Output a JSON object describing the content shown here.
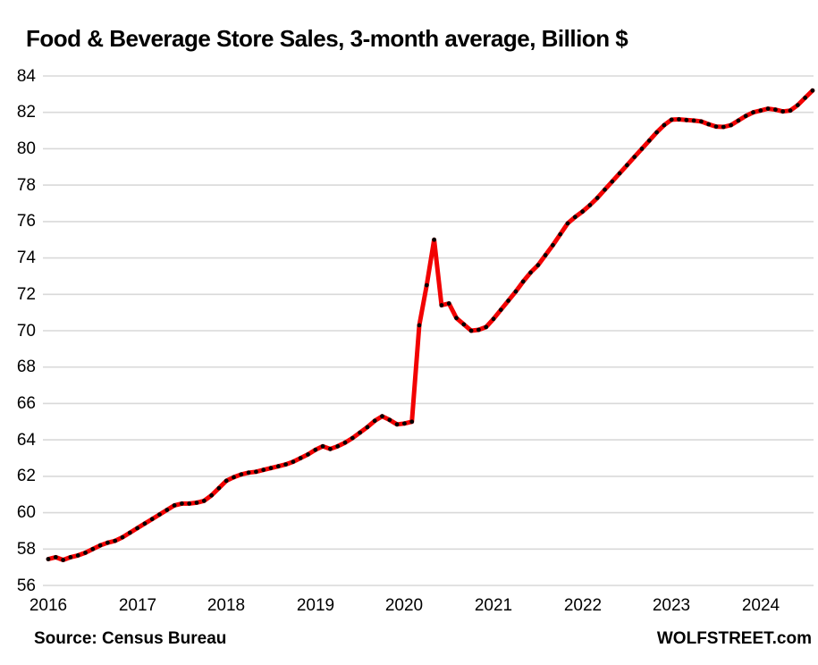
{
  "header": {
    "title": "Food & Beverage Store Sales, 3-month average, Billion $"
  },
  "footer": {
    "source": "Source: Census Bureau",
    "brand": "WOLFSTREET.com"
  },
  "colors": {
    "line": "#F20202",
    "marker": "#000000",
    "grid": "#D9D9D9",
    "text": "#000000",
    "background": "#FFFFFF"
  },
  "chart_data": {
    "type": "line",
    "title": "Food & Beverage Store Sales, 3-month average, Billion $",
    "xlabel": "",
    "ylabel": "",
    "ylim": [
      56,
      84
    ],
    "y_ticks": [
      56,
      58,
      60,
      62,
      64,
      66,
      68,
      70,
      72,
      74,
      76,
      78,
      80,
      82,
      84
    ],
    "x_tick_labels": [
      "2016",
      "2017",
      "2018",
      "2019",
      "2020",
      "2021",
      "2022",
      "2023",
      "2024"
    ],
    "grid": "horizontal-only",
    "legend": "none",
    "frequency": "monthly",
    "x_start": "2016-01",
    "x_end": "2024-08",
    "series": [
      {
        "name": "Food & beverage store sales, 3-month average, billion $",
        "line_color": "#F20202",
        "marker": "black dots on line",
        "values": [
          57.45,
          57.55,
          57.4,
          57.55,
          57.65,
          57.8,
          58.0,
          58.2,
          58.35,
          58.45,
          58.65,
          58.9,
          59.15,
          59.4,
          59.65,
          59.9,
          60.15,
          60.4,
          60.5,
          60.5,
          60.55,
          60.65,
          60.95,
          61.35,
          61.75,
          61.95,
          62.1,
          62.2,
          62.25,
          62.35,
          62.45,
          62.55,
          62.65,
          62.8,
          63.0,
          63.2,
          63.45,
          63.65,
          63.5,
          63.65,
          63.85,
          64.1,
          64.4,
          64.7,
          65.05,
          65.3,
          65.1,
          64.85,
          64.9,
          65.0,
          70.3,
          72.5,
          75.0,
          71.4,
          71.5,
          70.7,
          70.35,
          70.0,
          70.05,
          70.2,
          70.65,
          71.15,
          71.65,
          72.15,
          72.7,
          73.2,
          73.6,
          74.15,
          74.7,
          75.3,
          75.9,
          76.25,
          76.55,
          76.9,
          77.3,
          77.75,
          78.2,
          78.65,
          79.1,
          79.55,
          80.0,
          80.45,
          80.9,
          81.3,
          81.6,
          81.62,
          81.58,
          81.55,
          81.5,
          81.35,
          81.22,
          81.2,
          81.3,
          81.55,
          81.8,
          82.0,
          82.1,
          82.2,
          82.15,
          82.05,
          82.1,
          82.4,
          82.8,
          83.2
        ]
      }
    ]
  }
}
